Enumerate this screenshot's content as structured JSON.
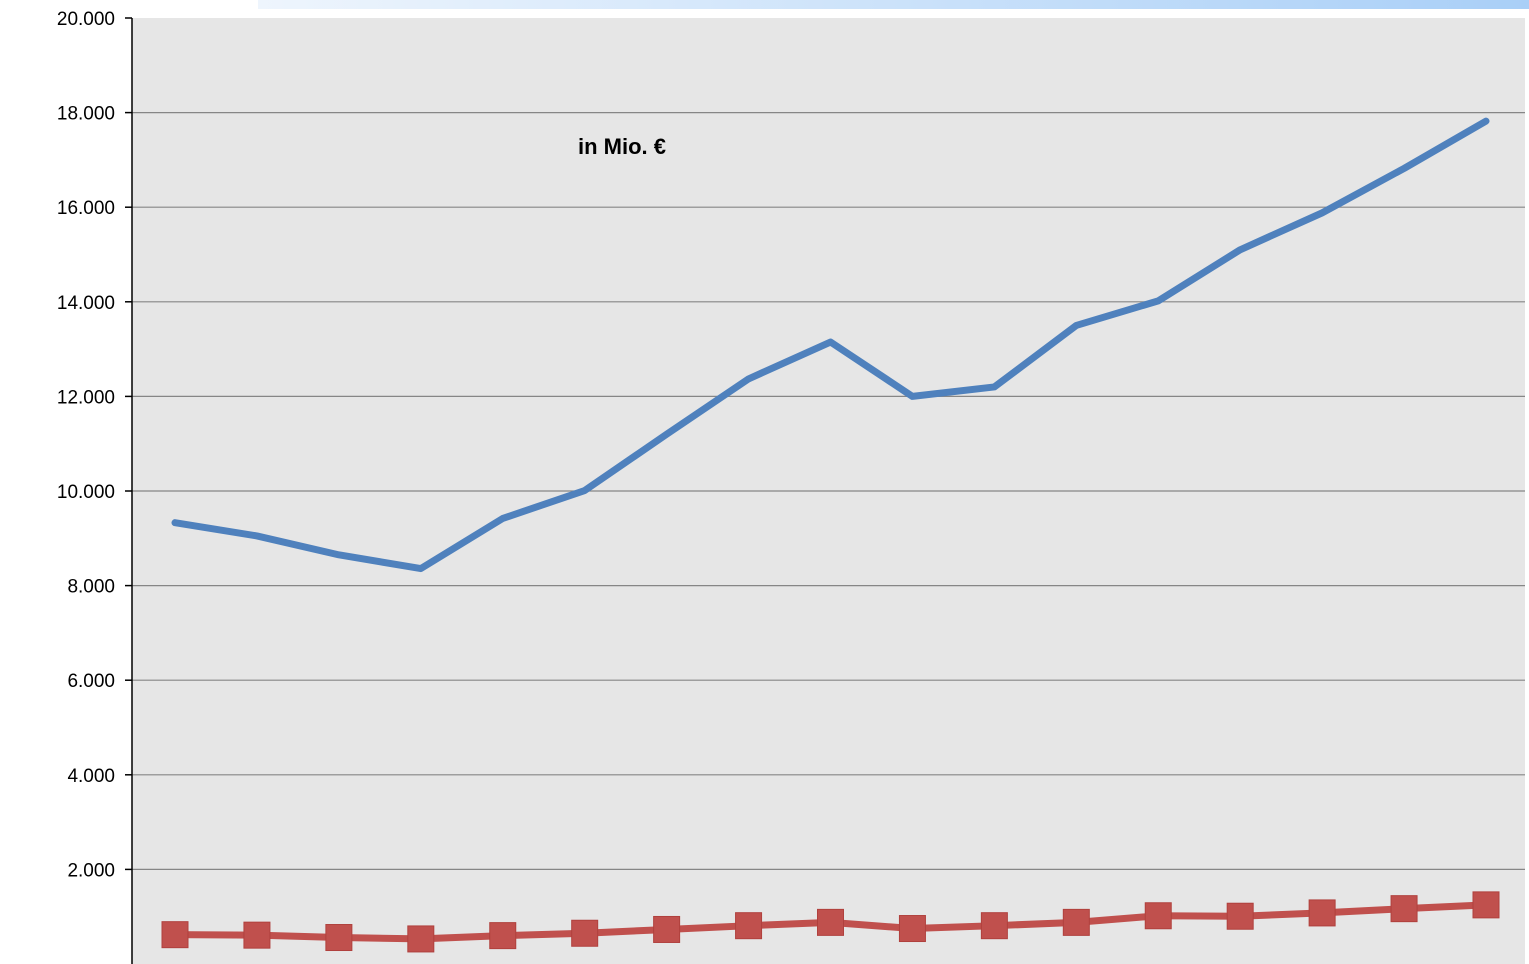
{
  "chart_data": {
    "type": "line",
    "annotation": "in Mio. €",
    "ylim": [
      0,
      20000
    ],
    "yticks": [
      2000,
      4000,
      6000,
      8000,
      10000,
      12000,
      14000,
      16000,
      18000,
      20000
    ],
    "ytick_labels": [
      "2.000",
      "4.000",
      "6.000",
      "8.000",
      "10.000",
      "12.000",
      "14.000",
      "16.000",
      "18.000",
      "20.000"
    ],
    "grid": true,
    "x": [
      1,
      2,
      3,
      4,
      5,
      6,
      7,
      8,
      9,
      10,
      11,
      12,
      13,
      14,
      15,
      16,
      17
    ],
    "series": [
      {
        "color": "#4f81bd",
        "marker": "none",
        "values": [
          9330,
          9050,
          8650,
          8360,
          9420,
          10010,
          11200,
          12370,
          13150,
          12000,
          12200,
          13500,
          14020,
          15100,
          15880,
          16820,
          17820
        ]
      },
      {
        "color": "#c0504d",
        "marker": "square",
        "values": [
          620,
          610,
          560,
          530,
          600,
          650,
          730,
          810,
          880,
          750,
          810,
          880,
          1020,
          1010,
          1080,
          1170,
          1250
        ]
      }
    ]
  }
}
